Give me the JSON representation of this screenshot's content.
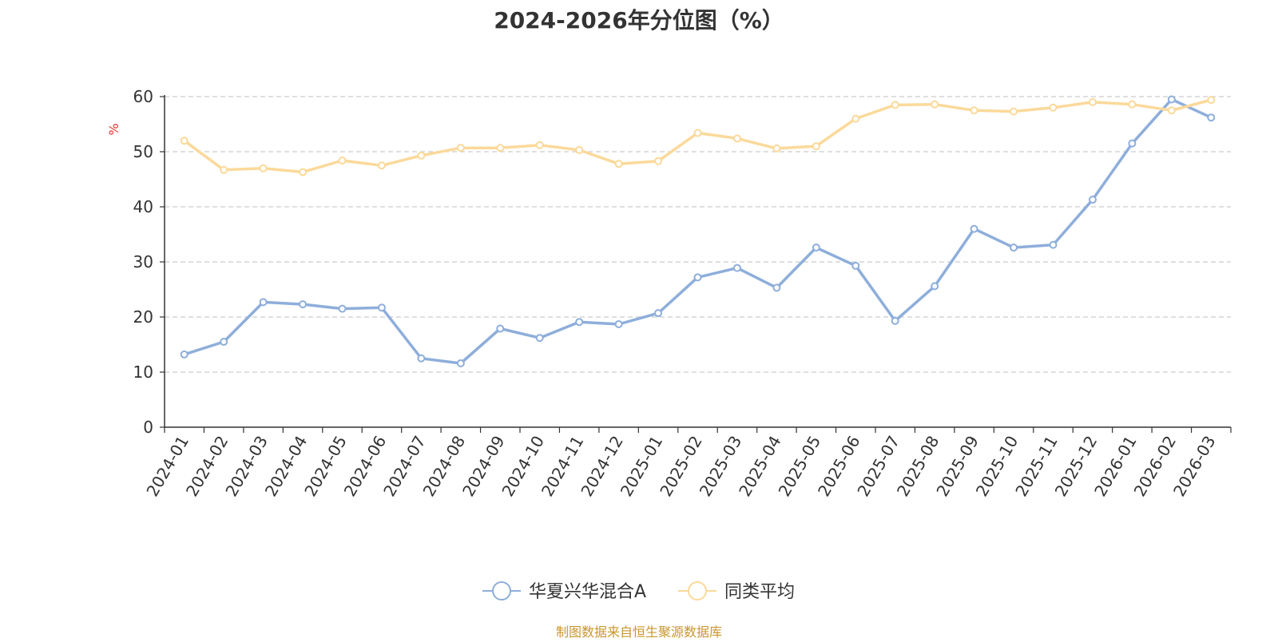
{
  "chart_data": {
    "type": "line",
    "title": "2024-2026年分位图（%）",
    "ylabel": "%",
    "xlabel": "",
    "ylim": [
      0,
      60
    ],
    "yticks": [
      0,
      10,
      20,
      30,
      40,
      50,
      60
    ],
    "grid": true,
    "legend_position": "bottom",
    "categories": [
      "2024-01",
      "2024-02",
      "2024-03",
      "2024-04",
      "2024-05",
      "2024-06",
      "2024-07",
      "2024-08",
      "2024-09",
      "2024-10",
      "2024-11",
      "2024-12",
      "2025-01",
      "2025-02",
      "2025-03",
      "2025-04",
      "2025-05",
      "2025-06",
      "2025-07",
      "2025-08",
      "2025-09",
      "2025-10",
      "2025-11",
      "2025-12",
      "2026-01",
      "2026-02",
      "2026-03"
    ],
    "series": [
      {
        "name": "华夏兴华混合A",
        "color": "#8eaedb",
        "values": [
          13.2,
          15.5,
          22.7,
          22.3,
          21.5,
          21.7,
          12.5,
          11.6,
          17.9,
          16.2,
          19.1,
          18.7,
          20.7,
          27.2,
          28.9,
          25.3,
          32.6,
          29.3,
          19.3,
          25.6,
          36.0,
          32.6,
          33.1,
          41.3,
          51.5,
          59.5,
          56.2
        ]
      },
      {
        "name": "同类平均",
        "color": "#fbd99a",
        "values": [
          52.0,
          46.7,
          47.0,
          46.3,
          48.4,
          47.5,
          49.3,
          50.7,
          50.7,
          51.2,
          50.3,
          47.8,
          48.3,
          53.4,
          52.4,
          50.6,
          51.0,
          56.0,
          58.5,
          58.6,
          57.5,
          57.3,
          58.0,
          59.0,
          58.6,
          57.5,
          59.4
        ]
      }
    ]
  },
  "source": "制图数据来自恒生聚源数据库"
}
